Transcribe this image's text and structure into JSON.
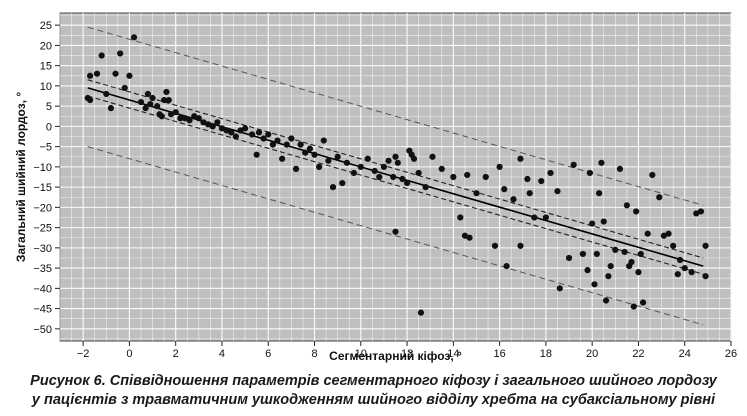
{
  "chart_data": {
    "type": "scatter",
    "title": "",
    "xlabel": "Сегментарний кіфоз, °",
    "ylabel": "Загальний шийний лордоз, °",
    "xlim": [
      -3,
      26
    ],
    "ylim": [
      -53,
      28
    ],
    "xticks": [
      -2,
      0,
      2,
      4,
      6,
      8,
      10,
      12,
      14,
      16,
      18,
      20,
      22,
      24,
      26
    ],
    "yticks": [
      25,
      20,
      15,
      10,
      5,
      0,
      -5,
      -10,
      -15,
      -20,
      -25,
      -30,
      -35,
      -40,
      -45,
      -50
    ],
    "xtick_labels": [
      "−2",
      "0",
      "2",
      "4",
      "6",
      "8",
      "10",
      "12",
      "14",
      "16",
      "18",
      "20",
      "22",
      "24",
      "26"
    ],
    "ytick_labels": [
      "25",
      "20",
      "15",
      "10",
      "5",
      "0",
      "−5",
      "−10",
      "−15",
      "−20",
      "−25",
      "−30",
      "−35",
      "−40",
      "−45",
      "−50"
    ],
    "grid": true,
    "background": "#bfbfbf",
    "point_color": "#111111",
    "regression_line": {
      "x": [
        -1.8,
        24.8
      ],
      "y": [
        9.5,
        -34.5
      ]
    },
    "confidence_band": {
      "upper": {
        "x": [
          -1.8,
          24.8
        ],
        "y": [
          11.5,
          -32.5
        ]
      },
      "lower": {
        "x": [
          -1.8,
          24.8
        ],
        "y": [
          7.5,
          -36.5
        ]
      }
    },
    "prediction_band": {
      "upper": {
        "x": [
          -1.8,
          24.8
        ],
        "y": [
          24.5,
          -19.5
        ]
      },
      "lower": {
        "x": [
          -1.8,
          24.8
        ],
        "y": [
          -5.0,
          -49.0
        ]
      }
    },
    "points": [
      [
        -1.8,
        7.0
      ],
      [
        -1.7,
        12.5
      ],
      [
        -1.7,
        6.5
      ],
      [
        -1.4,
        13.0
      ],
      [
        -1.2,
        17.5
      ],
      [
        -1.0,
        8.0
      ],
      [
        -0.8,
        4.5
      ],
      [
        -0.6,
        13.0
      ],
      [
        -0.4,
        18.0
      ],
      [
        -0.2,
        9.5
      ],
      [
        0.0,
        12.5
      ],
      [
        0.2,
        22.0
      ],
      [
        0.5,
        6.0
      ],
      [
        0.7,
        4.5
      ],
      [
        0.8,
        8.0
      ],
      [
        0.9,
        5.5
      ],
      [
        1.0,
        7.0
      ],
      [
        1.2,
        5.0
      ],
      [
        1.3,
        3.0
      ],
      [
        1.4,
        2.5
      ],
      [
        1.5,
        6.5
      ],
      [
        1.6,
        8.5
      ],
      [
        1.7,
        6.5
      ],
      [
        1.8,
        3.0
      ],
      [
        2.0,
        3.5
      ],
      [
        2.2,
        2.0
      ],
      [
        2.4,
        2.0
      ],
      [
        2.6,
        1.5
      ],
      [
        2.8,
        2.5
      ],
      [
        3.0,
        2.0
      ],
      [
        3.2,
        1.0
      ],
      [
        3.4,
        0.5
      ],
      [
        3.6,
        0.0
      ],
      [
        3.8,
        1.0
      ],
      [
        4.0,
        -0.5
      ],
      [
        4.2,
        -1.0
      ],
      [
        4.4,
        -1.5
      ],
      [
        4.6,
        -2.5
      ],
      [
        4.8,
        -1.0
      ],
      [
        5.0,
        -0.5
      ],
      [
        5.3,
        -2.0
      ],
      [
        5.5,
        -7.0
      ],
      [
        5.6,
        -1.5
      ],
      [
        5.8,
        -3.0
      ],
      [
        6.0,
        -2.0
      ],
      [
        6.2,
        -4.5
      ],
      [
        6.4,
        -3.5
      ],
      [
        6.6,
        -8.0
      ],
      [
        6.8,
        -4.5
      ],
      [
        7.0,
        -3.0
      ],
      [
        7.2,
        -10.5
      ],
      [
        7.4,
        -4.5
      ],
      [
        7.6,
        -6.5
      ],
      [
        7.8,
        -5.5
      ],
      [
        8.0,
        -7.0
      ],
      [
        8.2,
        -10.0
      ],
      [
        8.4,
        -3.5
      ],
      [
        8.6,
        -8.5
      ],
      [
        8.8,
        -15.0
      ],
      [
        9.0,
        -7.5
      ],
      [
        9.2,
        -14.0
      ],
      [
        9.4,
        -9.0
      ],
      [
        9.7,
        -11.5
      ],
      [
        10.0,
        -10.0
      ],
      [
        10.3,
        -8.0
      ],
      [
        10.6,
        -11.0
      ],
      [
        10.8,
        -12.5
      ],
      [
        11.0,
        -10.0
      ],
      [
        11.2,
        -8.5
      ],
      [
        11.4,
        -12.5
      ],
      [
        11.5,
        -7.5
      ],
      [
        11.6,
        -9.0
      ],
      [
        11.8,
        -13.0
      ],
      [
        12.0,
        -14.0
      ],
      [
        12.1,
        -6.0
      ],
      [
        12.2,
        -7.0
      ],
      [
        12.3,
        -8.0
      ],
      [
        12.5,
        -11.5
      ],
      [
        12.6,
        -46.0
      ],
      [
        11.5,
        -26.0
      ],
      [
        12.8,
        -15.0
      ],
      [
        13.1,
        -7.5
      ],
      [
        13.5,
        -10.5
      ],
      [
        14.0,
        -12.5
      ],
      [
        14.3,
        -22.5
      ],
      [
        14.5,
        -27.0
      ],
      [
        14.6,
        -12.0
      ],
      [
        14.7,
        -27.5
      ],
      [
        15.0,
        -16.5
      ],
      [
        15.4,
        -12.5
      ],
      [
        15.8,
        -29.5
      ],
      [
        16.0,
        -10.0
      ],
      [
        16.2,
        -15.5
      ],
      [
        16.3,
        -34.5
      ],
      [
        16.6,
        -18.0
      ],
      [
        16.9,
        -8.0
      ],
      [
        17.2,
        -13.0
      ],
      [
        17.3,
        -16.5
      ],
      [
        17.5,
        -22.5
      ],
      [
        17.8,
        -13.5
      ],
      [
        18.0,
        -22.5
      ],
      [
        18.2,
        -11.5
      ],
      [
        18.5,
        -16.0
      ],
      [
        18.6,
        -40.0
      ],
      [
        19.0,
        -32.5
      ],
      [
        19.2,
        -9.5
      ],
      [
        19.6,
        -31.5
      ],
      [
        19.8,
        -35.5
      ],
      [
        19.9,
        -11.5
      ],
      [
        20.0,
        -24.0
      ],
      [
        20.1,
        -39.0
      ],
      [
        20.2,
        -31.5
      ],
      [
        20.3,
        -16.5
      ],
      [
        20.4,
        -9.0
      ],
      [
        20.5,
        -23.5
      ],
      [
        20.6,
        -43.0
      ],
      [
        20.7,
        -37.0
      ],
      [
        20.8,
        -34.5
      ],
      [
        21.0,
        -30.5
      ],
      [
        21.2,
        -10.5
      ],
      [
        21.4,
        -31.0
      ],
      [
        21.5,
        -19.5
      ],
      [
        21.6,
        -34.5
      ],
      [
        21.8,
        -44.5
      ],
      [
        21.9,
        -21.0
      ],
      [
        22.0,
        -36.0
      ],
      [
        22.1,
        -31.5
      ],
      [
        22.2,
        -43.5
      ],
      [
        22.4,
        -26.5
      ],
      [
        22.6,
        -12.0
      ],
      [
        22.9,
        -17.5
      ],
      [
        23.1,
        -27.0
      ],
      [
        23.3,
        -26.5
      ],
      [
        23.5,
        -29.5
      ],
      [
        23.7,
        -36.5
      ],
      [
        23.8,
        -33.0
      ],
      [
        24.0,
        -35.0
      ],
      [
        24.3,
        -36.0
      ],
      [
        24.5,
        -21.5
      ],
      [
        24.7,
        -21.0
      ],
      [
        24.9,
        -37.0
      ],
      [
        24.9,
        -29.5
      ],
      [
        16.9,
        -29.5
      ],
      [
        21.7,
        -33.5
      ]
    ]
  },
  "caption": {
    "line1": "Рисунок 6. Співвідношення параметрів сегментарного кіфозу і загального шийного лордозу",
    "line2": "у пацієнтів з травматичним ушкодженням шийного відділу хребта на субаксіальному рівні"
  }
}
